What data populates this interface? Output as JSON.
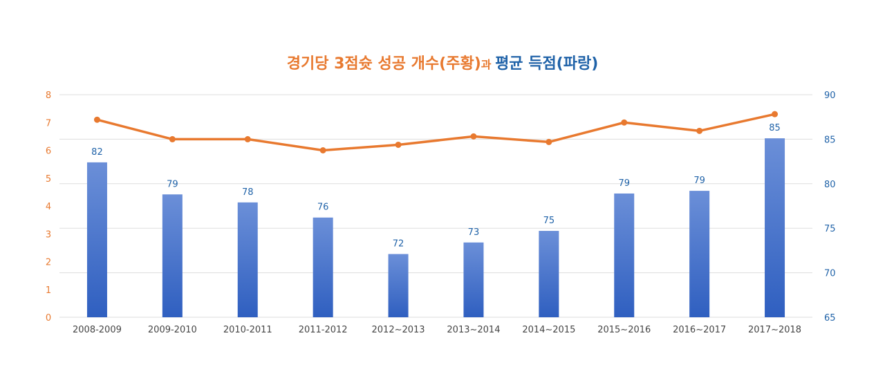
{
  "colors": {
    "orange": "#E8792F",
    "blue": "#1F62A8",
    "bar_top": "#6B8FD8",
    "bar_bottom": "#2F5FC0",
    "grid": "#DDDDDD",
    "axis_text": "#444444"
  },
  "title": {
    "part1": "경기당 3점슛 성공 개수(주황)",
    "part2": "과 ",
    "part3": "평균 득점(파랑)"
  },
  "chart_data": {
    "type": "bar",
    "categories": [
      "2008-2009",
      "2009-2010",
      "2010-2011",
      "2011-2012",
      "2012~2013",
      "2013~2014",
      "2014~2015",
      "2015~2016",
      "2016~2017",
      "2017~2018"
    ],
    "left_axis": {
      "ylim": [
        0,
        8
      ],
      "ticks": [
        "0",
        "1",
        "2",
        "3",
        "4",
        "5",
        "6",
        "7",
        "8"
      ]
    },
    "right_axis": {
      "ylim": [
        65,
        90
      ],
      "ticks": [
        "65",
        "70",
        "75",
        "80",
        "85",
        "90"
      ]
    },
    "series": [
      {
        "name": "평균 득점",
        "kind": "bar",
        "axis": "right",
        "values": [
          82.4,
          78.8,
          77.9,
          76.2,
          72.1,
          73.4,
          74.7,
          78.9,
          79.2,
          85.1
        ],
        "labels": [
          "82",
          "79",
          "78",
          "76",
          "72",
          "73",
          "75",
          "79",
          "79",
          "85"
        ]
      },
      {
        "name": "경기당 3점슛 성공 개수",
        "kind": "line",
        "axis": "left",
        "values": [
          7.1,
          6.4,
          6.4,
          6.0,
          6.2,
          6.5,
          6.3,
          7.0,
          6.7,
          7.3
        ]
      }
    ],
    "grid": true
  }
}
